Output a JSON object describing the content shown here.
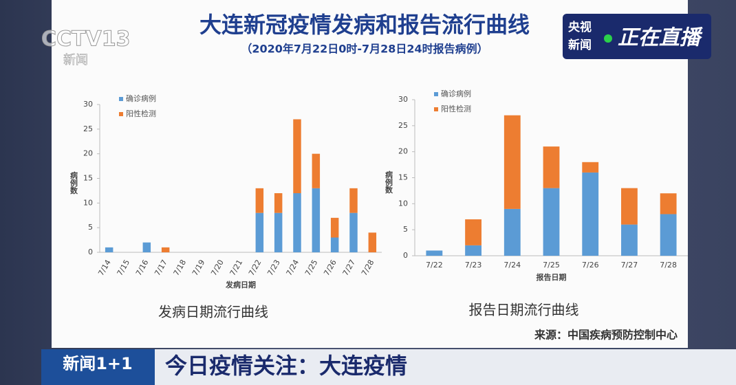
{
  "slide": {
    "title": "大连新冠疫情发病和报告流行曲线",
    "subtitle": "（2020年7月22日0时-7月28日24时报告病例）",
    "source": "来源：中国疾病预防控制中心"
  },
  "broadcast": {
    "channel_logo": "CCTV13",
    "channel_sub": "新闻",
    "brand_top": "央视",
    "brand_bottom": "新闻",
    "live": "正在直播",
    "program": "新闻1+1",
    "headline": "今日疫情关注：大连疫情"
  },
  "chart_data": [
    {
      "type": "bar",
      "stacked": true,
      "title": "发病日期流行曲线",
      "x_label": "发病日期",
      "y_label": "病例数",
      "categories": [
        "7/14",
        "7/15",
        "7/16",
        "7/17",
        "7/18",
        "7/19",
        "7/20",
        "7/21",
        "7/22",
        "7/23",
        "7/24",
        "7/25",
        "7/26",
        "7/27",
        "7/28"
      ],
      "series": [
        {
          "name": "确诊病例",
          "color": "#5b9bd5",
          "values": [
            1,
            0,
            2,
            0,
            0,
            0,
            0,
            0,
            8,
            8,
            12,
            13,
            3,
            8,
            0
          ]
        },
        {
          "name": "阳性检测",
          "color": "#ed7d31",
          "values": [
            0,
            0,
            0,
            1,
            0,
            0,
            0,
            0,
            5,
            4,
            15,
            7,
            4,
            5,
            4
          ]
        }
      ],
      "ylim": [
        0,
        30
      ],
      "yticks": [
        0,
        5,
        10,
        15,
        20,
        25,
        30
      ],
      "legend": "upper left"
    },
    {
      "type": "bar",
      "stacked": true,
      "title": "报告日期流行曲线",
      "x_label": "报告日期",
      "y_label": "病例数",
      "categories": [
        "7/22",
        "7/23",
        "7/24",
        "7/25",
        "7/26",
        "7/27",
        "7/28"
      ],
      "series": [
        {
          "name": "确诊病例",
          "color": "#5b9bd5",
          "values": [
            1,
            2,
            9,
            13,
            16,
            6,
            8
          ]
        },
        {
          "name": "阳性检测",
          "color": "#ed7d31",
          "values": [
            0,
            5,
            18,
            8,
            2,
            7,
            4
          ]
        }
      ],
      "ylim": [
        0,
        30
      ],
      "yticks": [
        0,
        5,
        10,
        15,
        20,
        25,
        30
      ],
      "legend": "upper left"
    }
  ]
}
